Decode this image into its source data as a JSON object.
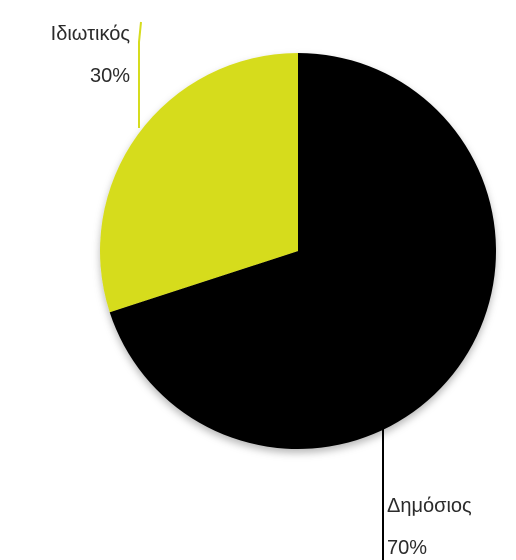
{
  "chart_data": {
    "type": "pie",
    "slices": [
      {
        "label": "Δημόσιος",
        "value": 70,
        "value_label": "70%",
        "color": "#000000"
      },
      {
        "label": "Ιδιωτικός",
        "value": 30,
        "value_label": "30%",
        "color": "#d6dc1e"
      }
    ],
    "start": "12 o'clock",
    "direction": "clockwise",
    "shadow": true,
    "leader_lines": true,
    "legend": "none"
  }
}
